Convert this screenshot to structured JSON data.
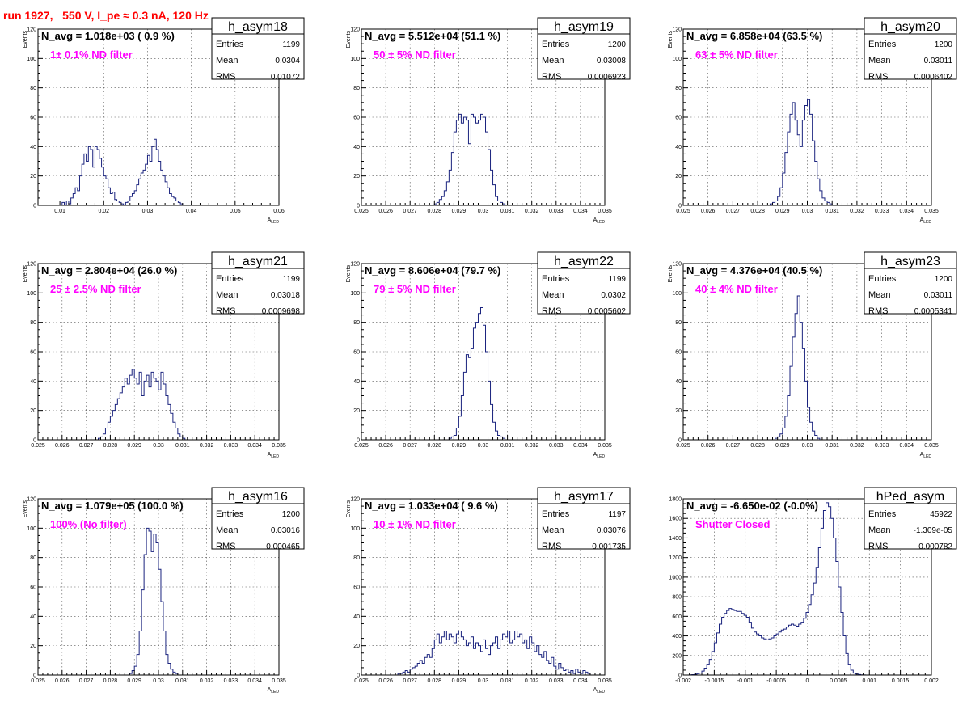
{
  "page_title": "run 1927,   550 V, I_pe ≈ 0.3 nA, 120 Hz",
  "chart_data": [
    {
      "type": "bar",
      "name": "h_asym18",
      "navg": "N_avg = 1.018e+03 ( 0.9 %)",
      "annotation": "1± 0.1% ND filter",
      "stats": {
        "Entries": "1199",
        "Mean": "0.0304",
        "RMS": "0.01072"
      },
      "xlabel": "A_LED",
      "ylabel": "Events",
      "xlim": [
        0.005,
        0.06
      ],
      "ylim": [
        0,
        120
      ],
      "xticks": [
        0.01,
        0.02,
        0.03,
        0.04,
        0.05,
        0.06
      ],
      "xticklabels": [
        "0.01",
        "0.02",
        "0.03",
        "0.04",
        "0.05",
        "0.06"
      ],
      "yticks": [
        0,
        20,
        40,
        60,
        80,
        100,
        120
      ],
      "yticklabels": [
        "0",
        "20",
        "40",
        "60",
        "80",
        "100",
        "120"
      ],
      "bin_start": 0.0105,
      "bin_width": 0.0005,
      "values": [
        2,
        0,
        3,
        1,
        5,
        8,
        12,
        10,
        20,
        28,
        35,
        30,
        40,
        38,
        26,
        40,
        38,
        32,
        26,
        20,
        18,
        12,
        8,
        9,
        4,
        3,
        2,
        1,
        0,
        2,
        3,
        6,
        8,
        10,
        14,
        18,
        22,
        24,
        28,
        34,
        30,
        40,
        45,
        38,
        30,
        24,
        20,
        16,
        12,
        8,
        6,
        5,
        3,
        2,
        1
      ],
      "grid": true
    },
    {
      "type": "bar",
      "name": "h_asym19",
      "navg": "N_avg = 5.512e+04 (51.1 %)",
      "annotation": "50 ± 5% ND filter",
      "stats": {
        "Entries": "1200",
        "Mean": "0.03008",
        "RMS": "0.0006923"
      },
      "xlabel": "A_LED",
      "ylabel": "Events",
      "xlim": [
        0.025,
        0.035
      ],
      "ylim": [
        0,
        120
      ],
      "xticks": [
        0.025,
        0.026,
        0.027,
        0.028,
        0.029,
        0.03,
        0.031,
        0.032,
        0.033,
        0.034,
        0.035
      ],
      "xticklabels": [
        "0.025",
        "0.026",
        "0.027",
        "0.028",
        "0.029",
        "0.03",
        "0.031",
        "0.032",
        "0.033",
        "0.034",
        "0.035"
      ],
      "yticks": [
        0,
        20,
        40,
        60,
        80,
        100,
        120
      ],
      "yticklabels": [
        "0",
        "20",
        "40",
        "60",
        "80",
        "100",
        "120"
      ],
      "bin_start": 0.028,
      "bin_width": 0.0001,
      "values": [
        1,
        2,
        4,
        6,
        10,
        16,
        24,
        36,
        50,
        58,
        62,
        56,
        60,
        58,
        42,
        62,
        60,
        56,
        58,
        62,
        60,
        50,
        38,
        24,
        14,
        6,
        3,
        2,
        1
      ],
      "grid": true
    },
    {
      "type": "bar",
      "name": "h_asym20",
      "navg": "N_avg = 6.858e+04 (63.5 %)",
      "annotation": "63 ± 5% ND filter",
      "stats": {
        "Entries": "1200",
        "Mean": "0.03011",
        "RMS": "0.0006402"
      },
      "xlabel": "A_LED",
      "ylabel": "Events",
      "xlim": [
        0.025,
        0.035
      ],
      "ylim": [
        0,
        120
      ],
      "xticks": [
        0.025,
        0.026,
        0.027,
        0.028,
        0.029,
        0.03,
        0.031,
        0.032,
        0.033,
        0.034,
        0.035
      ],
      "xticklabels": [
        "0.025",
        "0.026",
        "0.027",
        "0.028",
        "0.029",
        "0.03",
        "0.031",
        "0.032",
        "0.033",
        "0.034",
        "0.035"
      ],
      "yticks": [
        0,
        20,
        40,
        60,
        80,
        100,
        120
      ],
      "yticklabels": [
        "0",
        "20",
        "40",
        "60",
        "80",
        "100",
        "120"
      ],
      "bin_start": 0.0285,
      "bin_width": 0.0001,
      "values": [
        1,
        2,
        3,
        6,
        12,
        22,
        36,
        50,
        62,
        70,
        58,
        48,
        40,
        58,
        68,
        72,
        62,
        44,
        30,
        18,
        10,
        5,
        3,
        2,
        1
      ],
      "grid": true
    },
    {
      "type": "bar",
      "name": "h_asym21",
      "navg": "N_avg = 2.804e+04 (26.0 %)",
      "annotation": "25 ± 2.5% ND filter",
      "stats": {
        "Entries": "1199",
        "Mean": "0.03018",
        "RMS": "0.0009698"
      },
      "xlabel": "A_LED",
      "ylabel": "Events",
      "xlim": [
        0.025,
        0.035
      ],
      "ylim": [
        0,
        120
      ],
      "xticks": [
        0.025,
        0.026,
        0.027,
        0.028,
        0.029,
        0.03,
        0.031,
        0.032,
        0.033,
        0.034,
        0.035
      ],
      "xticklabels": [
        "0.025",
        "0.026",
        "0.027",
        "0.028",
        "0.029",
        "0.03",
        "0.031",
        "0.032",
        "0.033",
        "0.034",
        "0.035"
      ],
      "yticks": [
        0,
        20,
        40,
        60,
        80,
        100,
        120
      ],
      "yticklabels": [
        "0",
        "20",
        "40",
        "60",
        "80",
        "100",
        "120"
      ],
      "bin_start": 0.0275,
      "bin_width": 0.0001,
      "values": [
        1,
        2,
        4,
        8,
        12,
        16,
        20,
        24,
        28,
        32,
        36,
        42,
        38,
        44,
        48,
        42,
        38,
        46,
        30,
        40,
        44,
        36,
        46,
        42,
        40,
        34,
        46,
        38,
        30,
        24,
        18,
        12,
        8,
        4,
        2,
        1
      ],
      "grid": true
    },
    {
      "type": "bar",
      "name": "h_asym22",
      "navg": "N_avg = 8.606e+04 (79.7 %)",
      "annotation": "79 ± 5% ND filter",
      "stats": {
        "Entries": "1199",
        "Mean": "0.0302",
        "RMS": "0.0005602"
      },
      "xlabel": "A_LED",
      "ylabel": "Events",
      "xlim": [
        0.025,
        0.035
      ],
      "ylim": [
        0,
        120
      ],
      "xticks": [
        0.025,
        0.026,
        0.027,
        0.028,
        0.029,
        0.03,
        0.031,
        0.032,
        0.033,
        0.034,
        0.035
      ],
      "xticklabels": [
        "0.025",
        "0.026",
        "0.027",
        "0.028",
        "0.029",
        "0.03",
        "0.031",
        "0.032",
        "0.033",
        "0.034",
        "0.035"
      ],
      "yticks": [
        0,
        20,
        40,
        60,
        80,
        100,
        120
      ],
      "yticklabels": [
        "0",
        "20",
        "40",
        "60",
        "80",
        "100",
        "120"
      ],
      "bin_start": 0.0286,
      "bin_width": 0.0001,
      "values": [
        1,
        2,
        3,
        8,
        16,
        30,
        46,
        58,
        56,
        62,
        76,
        80,
        86,
        90,
        78,
        60,
        40,
        24,
        12,
        6,
        3,
        2,
        1
      ],
      "grid": true
    },
    {
      "type": "bar",
      "name": "h_asym23",
      "navg": "N_avg = 4.376e+04 (40.5 %)",
      "annotation": "40 ± 4% ND filter",
      "stats": {
        "Entries": "1200",
        "Mean": "0.03011",
        "RMS": "0.0005341"
      },
      "xlabel": "A_LED",
      "ylabel": "Events",
      "xlim": [
        0.025,
        0.035
      ],
      "ylim": [
        0,
        120
      ],
      "xticks": [
        0.025,
        0.026,
        0.027,
        0.028,
        0.029,
        0.03,
        0.031,
        0.032,
        0.033,
        0.034,
        0.035
      ],
      "xticklabels": [
        "0.025",
        "0.026",
        "0.027",
        "0.028",
        "0.029",
        "0.03",
        "0.031",
        "0.032",
        "0.033",
        "0.034",
        "0.035"
      ],
      "yticks": [
        0,
        20,
        40,
        60,
        80,
        100,
        120
      ],
      "yticklabels": [
        "0",
        "20",
        "40",
        "60",
        "80",
        "100",
        "120"
      ],
      "bin_start": 0.0287,
      "bin_width": 0.0001,
      "values": [
        1,
        2,
        4,
        8,
        16,
        30,
        50,
        70,
        86,
        98,
        80,
        62,
        40,
        22,
        12,
        6,
        3,
        1
      ],
      "grid": true
    },
    {
      "type": "bar",
      "name": "h_asym16",
      "navg": "N_avg = 1.079e+05 (100.0 %)",
      "annotation": "100% (No filter)",
      "stats": {
        "Entries": "1200",
        "Mean": "0.03016",
        "RMS": "0.000465"
      },
      "xlabel": "A_LED",
      "ylabel": "Events",
      "xlim": [
        0.025,
        0.035
      ],
      "ylim": [
        0,
        120
      ],
      "xticks": [
        0.025,
        0.026,
        0.027,
        0.028,
        0.029,
        0.03,
        0.031,
        0.032,
        0.033,
        0.034,
        0.035
      ],
      "xticklabels": [
        "0.025",
        "0.026",
        "0.027",
        "0.028",
        "0.029",
        "0.03",
        "0.031",
        "0.032",
        "0.033",
        "0.034",
        "0.035"
      ],
      "yticks": [
        0,
        20,
        40,
        60,
        80,
        100,
        120
      ],
      "yticklabels": [
        "0",
        "20",
        "40",
        "60",
        "80",
        "100",
        "120"
      ],
      "bin_start": 0.0288,
      "bin_width": 0.0001,
      "values": [
        1,
        3,
        6,
        14,
        30,
        58,
        82,
        100,
        98,
        84,
        96,
        90,
        72,
        50,
        30,
        14,
        8,
        4,
        2,
        1
      ],
      "grid": true
    },
    {
      "type": "bar",
      "name": "h_asym17",
      "navg": "N_avg = 1.033e+04 ( 9.6 %)",
      "annotation": "10 ± 1% ND filter",
      "stats": {
        "Entries": "1197",
        "Mean": "0.03076",
        "RMS": "0.001735"
      },
      "xlabel": "A_LED",
      "ylabel": "Events",
      "xlim": [
        0.025,
        0.035
      ],
      "ylim": [
        0,
        120
      ],
      "xticks": [
        0.025,
        0.026,
        0.027,
        0.028,
        0.029,
        0.03,
        0.031,
        0.032,
        0.033,
        0.034,
        0.035
      ],
      "xticklabels": [
        "0.025",
        "0.026",
        "0.027",
        "0.028",
        "0.029",
        "0.03",
        "0.031",
        "0.032",
        "0.033",
        "0.034",
        "0.035"
      ],
      "yticks": [
        0,
        20,
        40,
        60,
        80,
        100,
        120
      ],
      "yticklabels": [
        "0",
        "20",
        "40",
        "60",
        "80",
        "100",
        "120"
      ],
      "bin_start": 0.0265,
      "bin_width": 0.0001,
      "values": [
        1,
        1,
        2,
        3,
        2,
        4,
        5,
        6,
        8,
        10,
        8,
        12,
        14,
        12,
        18,
        24,
        28,
        22,
        26,
        30,
        24,
        28,
        26,
        22,
        28,
        30,
        26,
        24,
        20,
        22,
        26,
        18,
        22,
        20,
        16,
        24,
        18,
        14,
        20,
        22,
        26,
        18,
        24,
        28,
        26,
        30,
        22,
        24,
        30,
        26,
        28,
        22,
        24,
        18,
        26,
        22,
        16,
        20,
        14,
        12,
        16,
        10,
        8,
        12,
        6,
        4,
        8,
        5,
        3,
        4,
        2,
        3,
        1,
        4,
        2,
        1,
        3,
        2,
        1
      ],
      "grid": true
    },
    {
      "type": "bar",
      "name": "hPed_asym",
      "navg": "N_avg = -6.650e-02 (-0.0%)",
      "annotation": "Shutter Closed",
      "stats": {
        "Entries": "45922",
        "Mean": "-1.309e-05",
        "RMS": "0.000782"
      },
      "xlabel": "",
      "ylabel": "",
      "xlim": [
        -0.002,
        0.002
      ],
      "ylim": [
        0,
        1800
      ],
      "xticks": [
        -0.002,
        -0.0015,
        -0.001,
        -0.0005,
        0,
        0.0005,
        0.001,
        0.0015,
        0.002
      ],
      "xticklabels": [
        "-0.002",
        "-0.0015",
        "-0.001",
        "-0.0005",
        "0",
        "0.0005",
        "0.001",
        "0.0015",
        "0.002"
      ],
      "yticks": [
        0,
        200,
        400,
        600,
        800,
        1000,
        1200,
        1400,
        1600,
        1800
      ],
      "yticklabels": [
        "0",
        "200",
        "400",
        "600",
        "800",
        "1000",
        "1200",
        "1400",
        "1600",
        "1800"
      ],
      "bin_start": -0.0019,
      "bin_width": 4e-05,
      "values": [
        2,
        4,
        8,
        14,
        20,
        40,
        70,
        110,
        160,
        240,
        330,
        430,
        520,
        590,
        630,
        660,
        680,
        670,
        660,
        650,
        650,
        630,
        610,
        590,
        540,
        480,
        440,
        420,
        400,
        380,
        370,
        360,
        370,
        380,
        400,
        420,
        440,
        460,
        470,
        490,
        510,
        520,
        510,
        500,
        520,
        540,
        580,
        640,
        720,
        820,
        940,
        1100,
        1300,
        1500,
        1680,
        1760,
        1720,
        1600,
        1400,
        1160,
        900,
        640,
        400,
        220,
        110,
        50,
        20,
        10,
        5,
        2,
        1
      ],
      "grid": true
    }
  ]
}
